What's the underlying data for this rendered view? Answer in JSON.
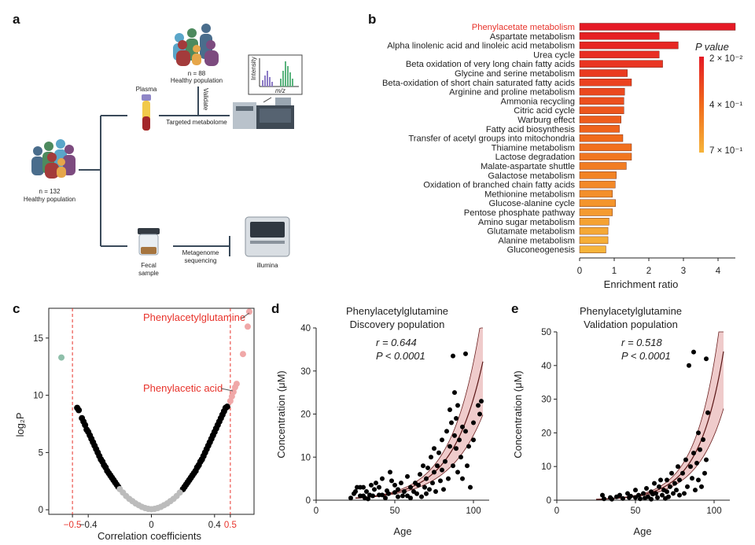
{
  "panels": {
    "a": "a",
    "b": "b",
    "c": "c",
    "d": "d",
    "e": "e"
  },
  "panel_a": {
    "cohort_main": {
      "n_label": "n = 132",
      "pop": "Healthy population"
    },
    "cohort_validation": {
      "n_label": "n = 88",
      "pop": "Healthy population"
    },
    "plasma": "Plasma",
    "validate": "Validate",
    "targeted": "Targeted metabolome",
    "intensity": "Intensity",
    "mz": "m/z",
    "fecal_line1": "Fecal",
    "fecal_line2": "sample",
    "metagenome_line1": "Metagenome",
    "metagenome_line2": "sequencing",
    "illumina": "illumina"
  },
  "chart_data": [
    {
      "type": "bar",
      "orientation": "horizontal",
      "panel": "b",
      "xlabel": "Enrichment ratio",
      "xlim": [
        0,
        4.5
      ],
      "xticks": [
        "0",
        "1",
        "2",
        "3",
        "4"
      ],
      "legend_title": "P value",
      "legend_ticks": [
        "2 × 10⁻²",
        "4 × 10⁻¹",
        "7 × 10⁻¹"
      ],
      "highlight_color": "#e8332b",
      "categories": [
        "Phenylacetate metabolism",
        "Aspartate metabolism",
        "Alpha linolenic acid and linoleic acid metabolism",
        "Urea cycle",
        "Beta oxidation of very long chain fatty acids",
        "Glycine and serine metabolism",
        "Beta-oxidation of short chain saturated fatty acids",
        "Arginine and proline metabolism",
        "Ammonia recycling",
        "Citric acid cycle",
        "Warburg effect",
        "Fatty acid biosynthesis",
        "Transfer of acetyl groups into mitochondria",
        "Thiamine metabolism",
        "Lactose degradation",
        "Malate-aspartate shuttle",
        "Galactose metabolism",
        "Oxidation of branched chain fatty acids",
        "Methionine metabolism",
        "Glucose-alanine cycle",
        "Pentose phosphate pathway",
        "Amino sugar metabolism",
        "Glutamate metabolism",
        "Alanine metabolism",
        "Gluconeogenesis"
      ],
      "values": [
        4.5,
        2.3,
        2.85,
        2.3,
        2.4,
        1.38,
        1.5,
        1.3,
        1.28,
        1.28,
        1.2,
        1.15,
        1.25,
        1.5,
        1.5,
        1.35,
        1.06,
        1.03,
        0.95,
        1.04,
        0.95,
        0.85,
        0.82,
        0.82,
        0.76
      ]
    },
    {
      "type": "scatter",
      "panel": "c",
      "xlabel": "Correlation coefficients",
      "ylabel": "log₂P",
      "xlim": [
        -0.65,
        0.65
      ],
      "ylim": [
        -0.4,
        17.6
      ],
      "xticks": [
        "−0.4",
        "0",
        "0.4"
      ],
      "red_xticks": [
        "−0.5",
        "0.5"
      ],
      "yticks": [
        "0",
        "5",
        "10",
        "15"
      ],
      "threshold_lines": [
        -0.5,
        0.5
      ],
      "annotations": [
        "Phenylacetylglutamine",
        "Phenylacetic acid"
      ],
      "series": [
        {
          "color": "#000000",
          "points": [
            [
              -0.47,
              8.9
            ],
            [
              -0.46,
              8.7
            ],
            [
              -0.44,
              8.0
            ],
            [
              -0.43,
              7.7
            ],
            [
              -0.42,
              7.4
            ],
            [
              -0.41,
              7.0
            ],
            [
              -0.4,
              6.8
            ],
            [
              -0.39,
              6.5
            ],
            [
              -0.38,
              6.2
            ],
            [
              -0.37,
              5.9
            ],
            [
              -0.36,
              5.6
            ],
            [
              -0.35,
              5.3
            ],
            [
              -0.34,
              5.0
            ],
            [
              -0.33,
              4.7
            ],
            [
              -0.32,
              4.4
            ],
            [
              -0.31,
              4.2
            ],
            [
              -0.3,
              3.9
            ],
            [
              -0.29,
              3.7
            ],
            [
              -0.28,
              3.4
            ],
            [
              -0.27,
              3.2
            ],
            [
              -0.26,
              3.0
            ],
            [
              -0.25,
              2.8
            ],
            [
              -0.24,
              2.6
            ],
            [
              -0.23,
              2.4
            ],
            [
              -0.22,
              2.2
            ],
            [
              -0.21,
              2.0
            ],
            [
              0.2,
              1.8
            ],
            [
              0.21,
              2.0
            ],
            [
              0.22,
              2.2
            ],
            [
              0.23,
              2.4
            ],
            [
              0.24,
              2.6
            ],
            [
              0.25,
              2.8
            ],
            [
              0.26,
              3.0
            ],
            [
              0.27,
              3.2
            ],
            [
              0.28,
              3.4
            ],
            [
              0.29,
              3.7
            ],
            [
              0.3,
              3.9
            ],
            [
              0.31,
              4.2
            ],
            [
              0.32,
              4.4
            ],
            [
              0.33,
              4.7
            ],
            [
              0.34,
              5.0
            ],
            [
              0.35,
              5.3
            ],
            [
              0.36,
              5.6
            ],
            [
              0.37,
              5.9
            ],
            [
              0.38,
              6.2
            ],
            [
              0.39,
              6.5
            ],
            [
              0.4,
              6.8
            ],
            [
              0.41,
              7.1
            ],
            [
              0.42,
              7.4
            ],
            [
              0.43,
              7.7
            ],
            [
              0.44,
              8.0
            ],
            [
              0.45,
              8.3
            ],
            [
              0.46,
              8.6
            ],
            [
              0.47,
              8.9
            ],
            [
              0.48,
              9.0
            ]
          ]
        },
        {
          "color": "#bcbcbc",
          "points": [
            [
              -0.2,
              1.8
            ],
            [
              -0.18,
              1.5
            ],
            [
              -0.16,
              1.2
            ],
            [
              -0.14,
              0.95
            ],
            [
              -0.12,
              0.75
            ],
            [
              -0.1,
              0.55
            ],
            [
              -0.08,
              0.4
            ],
            [
              -0.06,
              0.25
            ],
            [
              -0.04,
              0.15
            ],
            [
              -0.02,
              0.08
            ],
            [
              0.0,
              0.05
            ],
            [
              0.02,
              0.08
            ],
            [
              0.04,
              0.15
            ],
            [
              0.06,
              0.25
            ],
            [
              0.08,
              0.4
            ],
            [
              0.1,
              0.55
            ],
            [
              0.12,
              0.75
            ],
            [
              0.14,
              0.95
            ],
            [
              0.16,
              1.2
            ],
            [
              0.18,
              1.5
            ]
          ]
        },
        {
          "color": "#f0a8a8",
          "points": [
            [
              0.5,
              9.5
            ],
            [
              0.51,
              9.9
            ],
            [
              0.52,
              10.3
            ],
            [
              0.53,
              10.7
            ],
            [
              0.54,
              11.0
            ],
            [
              0.58,
              13.6
            ],
            [
              0.61,
              16.0
            ],
            [
              0.62,
              17.3
            ]
          ]
        },
        {
          "color": "#8fbfaa",
          "points": [
            [
              -0.57,
              13.3
            ]
          ]
        }
      ]
    },
    {
      "type": "scatter",
      "panel": "d",
      "title": [
        "Phenylacetylglutamine",
        "Discovery population"
      ],
      "stats": [
        "r = 0.644",
        "P < 0.0001"
      ],
      "xlabel": "Age",
      "ylabel": "Concentration (μM)",
      "xlim": [
        0,
        110
      ],
      "ylim": [
        0,
        40
      ],
      "xticks": [
        "0",
        "50",
        "100"
      ],
      "yticks": [
        "0",
        "10",
        "20",
        "30",
        "40"
      ],
      "fit": {
        "type": "exponential",
        "a": 0.13,
        "b": 0.052
      },
      "points": [
        [
          22,
          0.5
        ],
        [
          24,
          1.5
        ],
        [
          25,
          2.0
        ],
        [
          26,
          3.0
        ],
        [
          28,
          1.0
        ],
        [
          28,
          3.0
        ],
        [
          30,
          1.0
        ],
        [
          30,
          3.0
        ],
        [
          31,
          0.5
        ],
        [
          32,
          2.0
        ],
        [
          33,
          0.3
        ],
        [
          34,
          1.2
        ],
        [
          35,
          3.5
        ],
        [
          36,
          1.0
        ],
        [
          37,
          2.5
        ],
        [
          38,
          4.0
        ],
        [
          40,
          1.2
        ],
        [
          40,
          3.0
        ],
        [
          42,
          5.0
        ],
        [
          42,
          1.2
        ],
        [
          44,
          0.5
        ],
        [
          45,
          2.2
        ],
        [
          46,
          1.5
        ],
        [
          47,
          6.5
        ],
        [
          48,
          4.5
        ],
        [
          50,
          1.8
        ],
        [
          50,
          3.5
        ],
        [
          52,
          0.8
        ],
        [
          52,
          2.5
        ],
        [
          54,
          4.0
        ],
        [
          55,
          1.0
        ],
        [
          56,
          2.0
        ],
        [
          58,
          5.5
        ],
        [
          58,
          1.0
        ],
        [
          60,
          3.0
        ],
        [
          60,
          0.5
        ],
        [
          62,
          2.0
        ],
        [
          63,
          4.0
        ],
        [
          64,
          1.5
        ],
        [
          65,
          3.5
        ],
        [
          66,
          6.0
        ],
        [
          67,
          0.8
        ],
        [
          68,
          8.0
        ],
        [
          69,
          3.0
        ],
        [
          70,
          5.0
        ],
        [
          70,
          1.5
        ],
        [
          71,
          7.5
        ],
        [
          72,
          2.5
        ],
        [
          73,
          10.0
        ],
        [
          74,
          4.0
        ],
        [
          75,
          12.0
        ],
        [
          75,
          6.5
        ],
        [
          76,
          2.0
        ],
        [
          77,
          8.0
        ],
        [
          78,
          11.0
        ],
        [
          79,
          4.5
        ],
        [
          80,
          7.0
        ],
        [
          80,
          14.0
        ],
        [
          81,
          2.5
        ],
        [
          82,
          9.0
        ],
        [
          83,
          16.0
        ],
        [
          84,
          5.0
        ],
        [
          85,
          12.5
        ],
        [
          85,
          21.0
        ],
        [
          86,
          18.0
        ],
        [
          87,
          8.0
        ],
        [
          87,
          33.5
        ],
        [
          88,
          15.0
        ],
        [
          88,
          25.0
        ],
        [
          89,
          12.0
        ],
        [
          89,
          19.0
        ],
        [
          90,
          22.0
        ],
        [
          90,
          6.5
        ],
        [
          91,
          14.0
        ],
        [
          92,
          10.0
        ],
        [
          93,
          17.0
        ],
        [
          93,
          5.0
        ],
        [
          95,
          34.0
        ],
        [
          95,
          16.0
        ],
        [
          96,
          8.0
        ],
        [
          97,
          12.5
        ],
        [
          98,
          3.0
        ],
        [
          100,
          18.0
        ],
        [
          100,
          14.0
        ],
        [
          103,
          22.0
        ],
        [
          104,
          20.0
        ],
        [
          105,
          23.0
        ]
      ]
    },
    {
      "type": "scatter",
      "panel": "e",
      "title": [
        "Phenylacetylglutamine",
        "Validation population"
      ],
      "stats": [
        "r = 0.518",
        "P < 0.0001"
      ],
      "xlabel": "Age",
      "ylabel": "Concentration (μM)",
      "xlim": [
        0,
        110
      ],
      "ylim": [
        0,
        50
      ],
      "xticks": [
        "0",
        "50",
        "100"
      ],
      "yticks": [
        "0",
        "10",
        "20",
        "30",
        "40",
        "50"
      ],
      "fit": {
        "type": "exponential",
        "a": 0.05,
        "b": 0.064
      },
      "points": [
        [
          29,
          1.5
        ],
        [
          30,
          0.4
        ],
        [
          34,
          0.8
        ],
        [
          35,
          0.3
        ],
        [
          38,
          1.0
        ],
        [
          40,
          1.5
        ],
        [
          42,
          0.5
        ],
        [
          45,
          2.0
        ],
        [
          46,
          0.8
        ],
        [
          47,
          1.2
        ],
        [
          50,
          3.0
        ],
        [
          50,
          0.8
        ],
        [
          52,
          1.5
        ],
        [
          53,
          0.4
        ],
        [
          55,
          2.0
        ],
        [
          56,
          0.6
        ],
        [
          57,
          3.5
        ],
        [
          58,
          1.0
        ],
        [
          60,
          2.5
        ],
        [
          60,
          0.3
        ],
        [
          61,
          1.8
        ],
        [
          62,
          5.0
        ],
        [
          63,
          2.0
        ],
        [
          64,
          0.8
        ],
        [
          65,
          4.0
        ],
        [
          66,
          6.0
        ],
        [
          67,
          1.5
        ],
        [
          68,
          3.0
        ],
        [
          69,
          0.5
        ],
        [
          70,
          6.0
        ],
        [
          70,
          2.5
        ],
        [
          71,
          1.0
        ],
        [
          72,
          4.0
        ],
        [
          73,
          8.0
        ],
        [
          74,
          2.0
        ],
        [
          75,
          5.0
        ],
        [
          76,
          3.0
        ],
        [
          77,
          10.0
        ],
        [
          78,
          1.5
        ],
        [
          78,
          6.0
        ],
        [
          80,
          8.0
        ],
        [
          81,
          2.0
        ],
        [
          82,
          12.0
        ],
        [
          83,
          4.0
        ],
        [
          84,
          40.0
        ],
        [
          85,
          10.0
        ],
        [
          86,
          6.5
        ],
        [
          87,
          44.0
        ],
        [
          87,
          14.0
        ],
        [
          88,
          3.0
        ],
        [
          89,
          11.0
        ],
        [
          90,
          20.0
        ],
        [
          90,
          6.0
        ],
        [
          91,
          15.0
        ],
        [
          92,
          4.0
        ],
        [
          93,
          18.0
        ],
        [
          94,
          8.0
        ],
        [
          95,
          42.0
        ],
        [
          95,
          12.0
        ],
        [
          96,
          26.0
        ]
      ]
    }
  ]
}
